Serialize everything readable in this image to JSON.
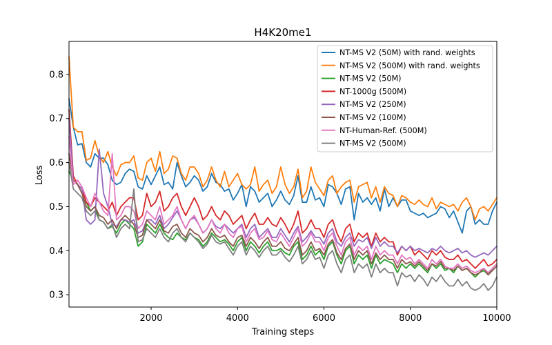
{
  "chart_data": {
    "type": "line",
    "title": "H4K20me1",
    "xlabel": "Training steps",
    "ylabel": "Loss",
    "xlim": [
      100,
      10000
    ],
    "ylim": [
      0.272,
      0.875
    ],
    "xticks": [
      2000,
      4000,
      6000,
      8000,
      10000
    ],
    "xtick_labels": [
      "2000",
      "4000",
      "6000",
      "8000",
      "10000"
    ],
    "yticks": [
      0.3,
      0.4,
      0.5,
      0.6,
      0.7,
      0.8
    ],
    "ytick_labels": [
      "0.3",
      "0.4",
      "0.5",
      "0.6",
      "0.7",
      "0.8"
    ],
    "grid": false,
    "legend_placement": "top-right",
    "x": [
      100,
      200,
      300,
      400,
      500,
      600,
      700,
      800,
      900,
      1000,
      1100,
      1200,
      1300,
      1400,
      1500,
      1600,
      1700,
      1800,
      1900,
      2000,
      2100,
      2200,
      2300,
      2400,
      2500,
      2600,
      2700,
      2800,
      2900,
      3000,
      3100,
      3200,
      3300,
      3400,
      3500,
      3600,
      3700,
      3800,
      3900,
      4000,
      4100,
      4200,
      4300,
      4400,
      4500,
      4600,
      4700,
      4800,
      4900,
      5000,
      5100,
      5200,
      5300,
      5400,
      5500,
      5600,
      5700,
      5800,
      5900,
      6000,
      6100,
      6200,
      6300,
      6400,
      6500,
      6600,
      6700,
      6800,
      6900,
      7000,
      7100,
      7200,
      7300,
      7400,
      7500,
      7600,
      7700,
      7800,
      7900,
      8000,
      8100,
      8200,
      8300,
      8400,
      8500,
      8600,
      8700,
      8800,
      8900,
      9000,
      9100,
      9200,
      9300,
      9400,
      9500,
      9600,
      9700,
      9800,
      9900,
      10000
    ],
    "series": [
      {
        "name": "NT-MS V2 (50M) with rand. weights",
        "color": "#1f77b4",
        "values": [
          0.745,
          0.68,
          0.64,
          0.643,
          0.6,
          0.59,
          0.62,
          0.61,
          0.61,
          0.595,
          0.56,
          0.55,
          0.555,
          0.575,
          0.585,
          0.58,
          0.545,
          0.54,
          0.57,
          0.55,
          0.57,
          0.59,
          0.55,
          0.555,
          0.54,
          0.6,
          0.57,
          0.545,
          0.555,
          0.57,
          0.56,
          0.535,
          0.545,
          0.575,
          0.555,
          0.55,
          0.535,
          0.54,
          0.515,
          0.53,
          0.55,
          0.5,
          0.545,
          0.535,
          0.51,
          0.52,
          0.53,
          0.5,
          0.515,
          0.535,
          0.515,
          0.505,
          0.525,
          0.57,
          0.51,
          0.51,
          0.545,
          0.515,
          0.52,
          0.5,
          0.55,
          0.545,
          0.53,
          0.505,
          0.54,
          0.545,
          0.47,
          0.53,
          0.51,
          0.52,
          0.505,
          0.52,
          0.49,
          0.54,
          0.5,
          0.52,
          0.5,
          0.515,
          0.515,
          0.49,
          0.485,
          0.48,
          0.485,
          0.475,
          0.48,
          0.485,
          0.5,
          0.495,
          0.475,
          0.49,
          0.465,
          0.44,
          0.49,
          0.5,
          0.46,
          0.47,
          0.46,
          0.46,
          0.49,
          0.51
        ]
      },
      {
        "name": "NT-MS V2 (500M) with rand. weights",
        "color": "#ff7f0e",
        "values": [
          0.84,
          0.68,
          0.67,
          0.67,
          0.605,
          0.61,
          0.65,
          0.615,
          0.6,
          0.625,
          0.59,
          0.57,
          0.595,
          0.6,
          0.6,
          0.615,
          0.565,
          0.56,
          0.6,
          0.61,
          0.58,
          0.625,
          0.575,
          0.585,
          0.615,
          0.61,
          0.575,
          0.56,
          0.59,
          0.59,
          0.575,
          0.545,
          0.56,
          0.59,
          0.56,
          0.545,
          0.58,
          0.545,
          0.56,
          0.575,
          0.55,
          0.54,
          0.55,
          0.59,
          0.535,
          0.55,
          0.56,
          0.53,
          0.545,
          0.59,
          0.55,
          0.53,
          0.545,
          0.585,
          0.52,
          0.535,
          0.59,
          0.555,
          0.54,
          0.525,
          0.56,
          0.57,
          0.53,
          0.545,
          0.555,
          0.56,
          0.51,
          0.545,
          0.55,
          0.555,
          0.52,
          0.545,
          0.51,
          0.545,
          0.53,
          0.525,
          0.5,
          0.525,
          0.52,
          0.51,
          0.505,
          0.515,
          0.505,
          0.5,
          0.52,
          0.495,
          0.51,
          0.505,
          0.5,
          0.505,
          0.49,
          0.51,
          0.52,
          0.5,
          0.47,
          0.495,
          0.5,
          0.49,
          0.505,
          0.52
        ]
      },
      {
        "name": "NT-MS V2 (50M)",
        "color": "#2ca02c",
        "values": [
          0.58,
          0.56,
          0.55,
          0.54,
          0.51,
          0.49,
          0.5,
          0.47,
          0.465,
          0.45,
          0.455,
          0.44,
          0.46,
          0.47,
          0.46,
          0.45,
          0.41,
          0.42,
          0.46,
          0.45,
          0.44,
          0.46,
          0.44,
          0.43,
          0.425,
          0.44,
          0.43,
          0.425,
          0.44,
          0.43,
          0.425,
          0.41,
          0.42,
          0.44,
          0.43,
          0.42,
          0.425,
          0.415,
          0.4,
          0.42,
          0.43,
          0.4,
          0.42,
          0.41,
          0.395,
          0.41,
          0.42,
          0.4,
          0.4,
          0.405,
          0.395,
          0.39,
          0.41,
          0.42,
          0.38,
          0.39,
          0.41,
          0.39,
          0.4,
          0.38,
          0.41,
          0.42,
          0.39,
          0.37,
          0.4,
          0.41,
          0.37,
          0.39,
          0.38,
          0.39,
          0.36,
          0.39,
          0.37,
          0.38,
          0.375,
          0.37,
          0.35,
          0.37,
          0.36,
          0.37,
          0.36,
          0.37,
          0.36,
          0.35,
          0.37,
          0.36,
          0.37,
          0.355,
          0.36,
          0.35,
          0.365,
          0.355,
          0.36,
          0.35,
          0.34,
          0.35,
          0.355,
          0.345,
          0.36,
          0.37
        ]
      },
      {
        "name": "NT-1000g (500M)",
        "color": "#d62728",
        "values": [
          0.72,
          0.57,
          0.55,
          0.54,
          0.51,
          0.5,
          0.52,
          0.51,
          0.5,
          0.49,
          0.51,
          0.48,
          0.5,
          0.51,
          0.52,
          0.52,
          0.47,
          0.48,
          0.53,
          0.5,
          0.51,
          0.535,
          0.49,
          0.5,
          0.52,
          0.53,
          0.5,
          0.48,
          0.5,
          0.52,
          0.5,
          0.47,
          0.48,
          0.5,
          0.48,
          0.47,
          0.49,
          0.48,
          0.46,
          0.47,
          0.48,
          0.45,
          0.47,
          0.485,
          0.46,
          0.46,
          0.475,
          0.46,
          0.455,
          0.475,
          0.46,
          0.44,
          0.46,
          0.49,
          0.44,
          0.45,
          0.47,
          0.45,
          0.45,
          0.43,
          0.46,
          0.47,
          0.44,
          0.42,
          0.45,
          0.46,
          0.42,
          0.44,
          0.43,
          0.44,
          0.41,
          0.44,
          0.42,
          0.43,
          0.42,
          0.42,
          0.39,
          0.41,
          0.4,
          0.41,
          0.39,
          0.4,
          0.39,
          0.38,
          0.4,
          0.39,
          0.4,
          0.385,
          0.38,
          0.38,
          0.39,
          0.375,
          0.38,
          0.37,
          0.36,
          0.37,
          0.38,
          0.365,
          0.37,
          0.38
        ]
      },
      {
        "name": "NT-MS V2 (250M)",
        "color": "#9467bd",
        "values": [
          0.7,
          0.56,
          0.55,
          0.54,
          0.47,
          0.46,
          0.47,
          0.63,
          0.53,
          0.5,
          0.46,
          0.455,
          0.47,
          0.47,
          0.465,
          0.47,
          0.44,
          0.445,
          0.47,
          0.47,
          0.46,
          0.48,
          0.45,
          0.46,
          0.475,
          0.49,
          0.47,
          0.45,
          0.47,
          0.475,
          0.46,
          0.44,
          0.45,
          0.47,
          0.455,
          0.45,
          0.46,
          0.45,
          0.44,
          0.45,
          0.46,
          0.43,
          0.45,
          0.46,
          0.43,
          0.44,
          0.45,
          0.43,
          0.43,
          0.45,
          0.435,
          0.42,
          0.44,
          0.455,
          0.42,
          0.43,
          0.445,
          0.43,
          0.43,
          0.415,
          0.44,
          0.45,
          0.42,
          0.41,
          0.43,
          0.44,
          0.41,
          0.425,
          0.42,
          0.43,
          0.405,
          0.43,
          0.41,
          0.42,
          0.41,
          0.41,
          0.395,
          0.41,
          0.4,
          0.41,
          0.4,
          0.405,
          0.4,
          0.395,
          0.405,
          0.4,
          0.41,
          0.4,
          0.395,
          0.4,
          0.405,
          0.395,
          0.4,
          0.39,
          0.385,
          0.39,
          0.395,
          0.39,
          0.4,
          0.41
        ]
      },
      {
        "name": "NT-MS V2 (100M)",
        "color": "#8c564b",
        "values": [
          0.62,
          0.56,
          0.55,
          0.53,
          0.5,
          0.49,
          0.5,
          0.48,
          0.475,
          0.46,
          0.47,
          0.45,
          0.47,
          0.48,
          0.47,
          0.46,
          0.43,
          0.435,
          0.47,
          0.46,
          0.45,
          0.47,
          0.445,
          0.44,
          0.455,
          0.46,
          0.44,
          0.43,
          0.45,
          0.44,
          0.435,
          0.42,
          0.43,
          0.45,
          0.435,
          0.43,
          0.435,
          0.42,
          0.41,
          0.43,
          0.435,
          0.41,
          0.43,
          0.42,
          0.405,
          0.42,
          0.43,
          0.41,
          0.41,
          0.42,
          0.405,
          0.4,
          0.415,
          0.43,
          0.39,
          0.4,
          0.42,
          0.4,
          0.405,
          0.39,
          0.415,
          0.425,
          0.395,
          0.38,
          0.405,
          0.415,
          0.38,
          0.4,
          0.39,
          0.4,
          0.37,
          0.395,
          0.38,
          0.39,
          0.38,
          0.38,
          0.36,
          0.38,
          0.37,
          0.375,
          0.365,
          0.375,
          0.365,
          0.355,
          0.37,
          0.365,
          0.375,
          0.36,
          0.36,
          0.355,
          0.365,
          0.355,
          0.36,
          0.35,
          0.345,
          0.35,
          0.36,
          0.345,
          0.355,
          0.365
        ]
      },
      {
        "name": "NT-Human-Ref. (500M)",
        "color": "#e377c2",
        "values": [
          0.66,
          0.55,
          0.56,
          0.545,
          0.52,
          0.5,
          0.53,
          0.51,
          0.49,
          0.48,
          0.62,
          0.47,
          0.48,
          0.5,
          0.5,
          0.49,
          0.45,
          0.46,
          0.49,
          0.48,
          0.47,
          0.5,
          0.46,
          0.47,
          0.48,
          0.5,
          0.47,
          0.45,
          0.47,
          0.48,
          0.46,
          0.44,
          0.45,
          0.47,
          0.45,
          0.44,
          0.46,
          0.44,
          0.43,
          0.45,
          0.455,
          0.42,
          0.44,
          0.45,
          0.425,
          0.43,
          0.445,
          0.425,
          0.42,
          0.44,
          0.425,
          0.41,
          0.43,
          0.45,
          0.41,
          0.42,
          0.44,
          0.42,
          0.42,
          0.4,
          0.43,
          0.44,
          0.41,
          0.39,
          0.42,
          0.43,
          0.39,
          0.41,
          0.4,
          0.41,
          0.38,
          0.41,
          0.39,
          0.4,
          0.39,
          0.39,
          0.37,
          0.39,
          0.38,
          0.385,
          0.37,
          0.38,
          0.37,
          0.36,
          0.38,
          0.37,
          0.38,
          0.365,
          0.36,
          0.36,
          0.37,
          0.36,
          0.365,
          0.355,
          0.35,
          0.355,
          0.36,
          0.35,
          0.36,
          0.37
        ]
      },
      {
        "name": "NT-MS V2 (500M)",
        "color": "#7f7f7f",
        "values": [
          0.6,
          0.54,
          0.53,
          0.52,
          0.49,
          0.48,
          0.49,
          0.47,
          0.465,
          0.45,
          0.46,
          0.43,
          0.45,
          0.46,
          0.45,
          0.54,
          0.42,
          0.425,
          0.45,
          0.44,
          0.43,
          0.45,
          0.43,
          0.42,
          0.44,
          0.45,
          0.43,
          0.42,
          0.44,
          0.43,
          0.42,
          0.405,
          0.415,
          0.435,
          0.42,
          0.415,
          0.42,
          0.405,
          0.39,
          0.41,
          0.42,
          0.39,
          0.41,
          0.4,
          0.385,
          0.4,
          0.41,
          0.39,
          0.39,
          0.4,
          0.385,
          0.375,
          0.39,
          0.41,
          0.37,
          0.38,
          0.4,
          0.38,
          0.385,
          0.36,
          0.39,
          0.4,
          0.37,
          0.35,
          0.38,
          0.39,
          0.35,
          0.37,
          0.36,
          0.37,
          0.34,
          0.37,
          0.35,
          0.36,
          0.35,
          0.35,
          0.32,
          0.35,
          0.34,
          0.345,
          0.33,
          0.345,
          0.335,
          0.32,
          0.34,
          0.33,
          0.345,
          0.33,
          0.32,
          0.32,
          0.335,
          0.32,
          0.33,
          0.315,
          0.31,
          0.315,
          0.325,
          0.31,
          0.32,
          0.34
        ]
      }
    ]
  }
}
